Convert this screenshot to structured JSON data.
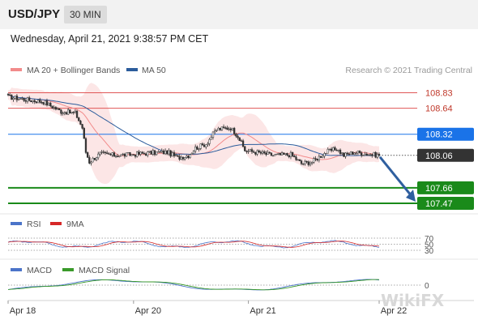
{
  "header": {
    "symbol": "USD/JPY",
    "timeframe": "30 MIN"
  },
  "datetime": "Wednesday, April 21, 2021 9:38:57 PM CET",
  "watermark": "WikiFX",
  "colors": {
    "resistance": "#e05656",
    "current": "#333333",
    "pivot": "#1a73e8",
    "support": "#1a8a1a",
    "ma20": "#f28b8b",
    "ma50": "#2b5c9c",
    "arrow": "#2f5f9f",
    "candle": "#333333",
    "rsi": "#4b74c9",
    "rsi_ma": "#d62728",
    "macd": "#4b74c9",
    "macd_signal": "#3a9a2a"
  },
  "chart_data": [
    {
      "type": "candlestick",
      "legend": [
        "MA 20 + Bollinger Bands",
        "MA 50"
      ],
      "legend_placement": "top-left",
      "credit": "Research © 2021 Trading Central",
      "x_ticks": [
        {
          "label": "Apr 18",
          "index": 0
        },
        {
          "label": "Apr 20",
          "index": 71
        },
        {
          "label": "Apr 21",
          "index": 136
        },
        {
          "label": "Apr 22",
          "index": 210
        }
      ],
      "ylim": [
        107.38,
        108.95
      ],
      "levels": [
        {
          "label": "108.83",
          "value": 108.83,
          "role": "resistance"
        },
        {
          "label": "108.64",
          "value": 108.64,
          "role": "resistance"
        },
        {
          "label": "108.32",
          "value": 108.32,
          "role": "pivot"
        },
        {
          "label": "108.06",
          "value": 108.06,
          "role": "current"
        },
        {
          "label": "107.66",
          "value": 107.66,
          "role": "support"
        },
        {
          "label": "107.47",
          "value": 107.47,
          "role": "support"
        }
      ],
      "forecast_target": 107.47,
      "anchors": [
        [
          0,
          108.78
        ],
        [
          12,
          108.74
        ],
        [
          20,
          108.72
        ],
        [
          30,
          108.6
        ],
        [
          38,
          108.58
        ],
        [
          42,
          108.4
        ],
        [
          44,
          108.1
        ],
        [
          46,
          107.98
        ],
        [
          52,
          108.08
        ],
        [
          60,
          108.06
        ],
        [
          70,
          108.07
        ],
        [
          80,
          108.09
        ],
        [
          90,
          108.1
        ],
        [
          96,
          108.03
        ],
        [
          102,
          108.06
        ],
        [
          106,
          108.15
        ],
        [
          112,
          108.2
        ],
        [
          118,
          108.38
        ],
        [
          126,
          108.4
        ],
        [
          130,
          108.3
        ],
        [
          134,
          108.12
        ],
        [
          140,
          108.1
        ],
        [
          150,
          108.06
        ],
        [
          160,
          108.07
        ],
        [
          166,
          107.96
        ],
        [
          172,
          107.98
        ],
        [
          180,
          108.1
        ],
        [
          186,
          108.14
        ],
        [
          190,
          108.06
        ],
        [
          196,
          108.1
        ],
        [
          202,
          108.08
        ],
        [
          210,
          108.06
        ]
      ],
      "n_candles": 211
    },
    {
      "type": "line",
      "legend": [
        "RSI",
        "9MA"
      ],
      "y_ticks": [
        "70",
        "50",
        "30"
      ]
    },
    {
      "type": "line",
      "legend": [
        "MACD",
        "MACD Signal"
      ],
      "y_ticks": [
        "0"
      ]
    }
  ]
}
